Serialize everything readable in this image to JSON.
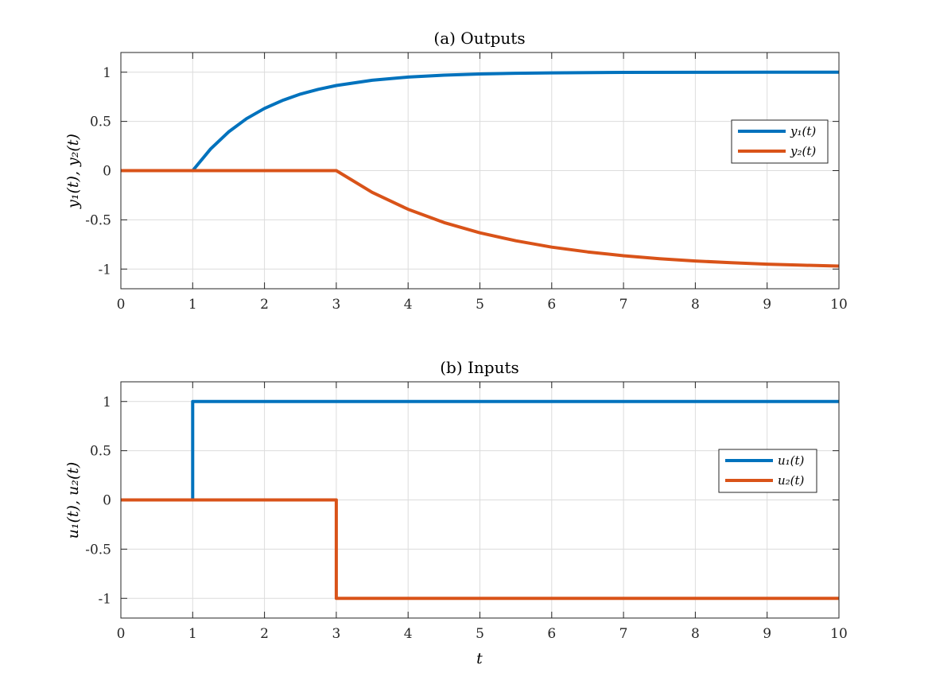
{
  "chart_data": [
    {
      "type": "line",
      "title": "(a) Outputs",
      "xlabel": "",
      "ylabel": "y₁(t), y₂(t)",
      "xlim": [
        0,
        10
      ],
      "ylim": [
        -1.2,
        1.2
      ],
      "xticks": [
        "0",
        "1",
        "2",
        "3",
        "4",
        "5",
        "6",
        "7",
        "8",
        "9",
        "10"
      ],
      "yticks": [
        "1",
        "0.5",
        "0",
        "-0.5",
        "-1"
      ],
      "grid": true,
      "legend_placement": "right",
      "series": [
        {
          "name": "y₁(t)",
          "color": "#0072BD",
          "x": [
            0,
            1,
            1.25,
            1.5,
            1.75,
            2,
            2.25,
            2.5,
            2.75,
            3,
            3.5,
            4,
            4.5,
            5,
            5.5,
            6,
            7,
            8,
            9,
            10
          ],
          "y": [
            0,
            0,
            0.221,
            0.393,
            0.528,
            0.632,
            0.713,
            0.777,
            0.826,
            0.865,
            0.918,
            0.95,
            0.97,
            0.982,
            0.989,
            0.993,
            0.998,
            0.999,
            1.0,
            1.0
          ]
        },
        {
          "name": "y₂(t)",
          "color": "#D95319",
          "x": [
            0,
            3,
            3.5,
            4,
            4.5,
            5,
            5.5,
            6,
            6.5,
            7,
            7.5,
            8,
            8.5,
            9,
            9.5,
            10
          ],
          "y": [
            0,
            0,
            -0.221,
            -0.393,
            -0.528,
            -0.632,
            -0.713,
            -0.777,
            -0.826,
            -0.865,
            -0.895,
            -0.918,
            -0.936,
            -0.95,
            -0.961,
            -0.97
          ]
        }
      ]
    },
    {
      "type": "line",
      "title": "(b) Inputs",
      "xlabel": "t",
      "ylabel": "u₁(t), u₂(t)",
      "xlim": [
        0,
        10
      ],
      "ylim": [
        -1.2,
        1.2
      ],
      "xticks": [
        "0",
        "1",
        "2",
        "3",
        "4",
        "5",
        "6",
        "7",
        "8",
        "9",
        "10"
      ],
      "yticks": [
        "1",
        "0.5",
        "0",
        "-0.5",
        "-1"
      ],
      "grid": true,
      "legend_placement": "right",
      "series": [
        {
          "name": "u₁(t)",
          "color": "#0072BD",
          "x": [
            0,
            1,
            1,
            10
          ],
          "y": [
            0,
            0,
            1,
            1
          ]
        },
        {
          "name": "u₂(t)",
          "color": "#D95319",
          "x": [
            0,
            3,
            3,
            10
          ],
          "y": [
            0,
            0,
            -1,
            -1
          ]
        }
      ]
    }
  ]
}
